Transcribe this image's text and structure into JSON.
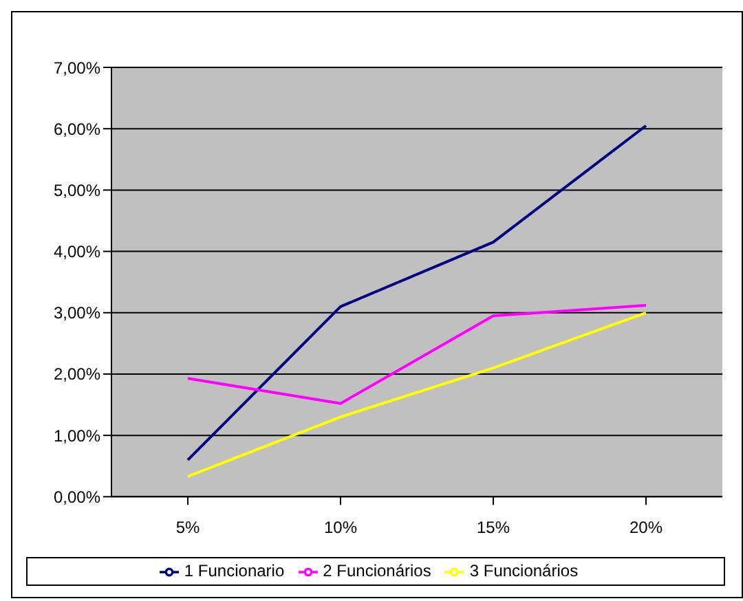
{
  "chart_data": {
    "type": "line",
    "categories": [
      "5%",
      "10%",
      "15%",
      "20%"
    ],
    "series": [
      {
        "name": "1 Funcionario",
        "color": "#000080",
        "values": [
          0.6,
          3.1,
          4.15,
          6.05
        ]
      },
      {
        "name": "2 Funcionários",
        "color": "#ff00ff",
        "values": [
          1.93,
          1.52,
          2.95,
          3.12
        ]
      },
      {
        "name": "3 Funcionários",
        "color": "#ffff00",
        "values": [
          0.33,
          1.3,
          2.1,
          3.0
        ]
      }
    ],
    "ylim": [
      0,
      7
    ],
    "yticks": [
      {
        "value": 0,
        "label": "0,00%"
      },
      {
        "value": 1,
        "label": "1,00%"
      },
      {
        "value": 2,
        "label": "2,00%"
      },
      {
        "value": 3,
        "label": "3,00%"
      },
      {
        "value": 4,
        "label": "4,00%"
      },
      {
        "value": 5,
        "label": "5,00%"
      },
      {
        "value": 6,
        "label": "6,00%"
      },
      {
        "value": 7,
        "label": "7,00%"
      }
    ],
    "grid": "y",
    "legend": "bottom",
    "marker": "none",
    "line_style": "solid"
  }
}
